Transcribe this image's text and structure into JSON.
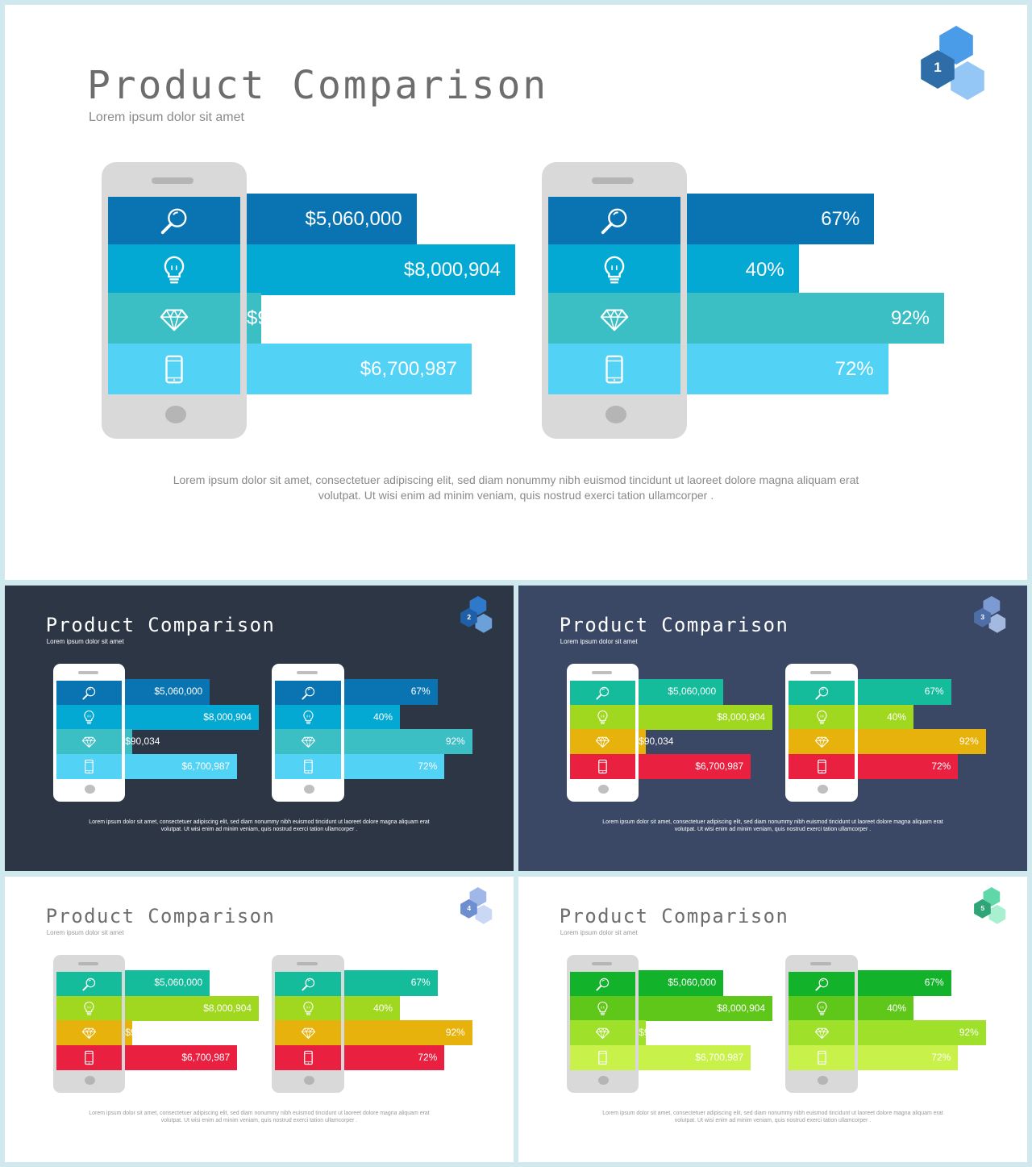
{
  "slides": [
    {
      "number": "1",
      "title": "Product Comparison",
      "subtitle": "Lorem ipsum dolor sit amet",
      "body_line1": "Lorem ipsum dolor sit amet, consectetuer adipiscing elit, sed diam nonummy  nibh euismod tincidunt ut laoreet dolore magna aliquam erat",
      "body_line2": "volutpat. Ut wisi enim ad minim veniam, quis nostrud exerci tation ullamcorper .",
      "theme": {
        "bg": "#ffffff",
        "title": "#6d6d6d",
        "subtitle": "#8a8a8a",
        "body": "#8a8a8a",
        "phone": "#d9d9d9",
        "phone_detail": "#b5b5b5",
        "bar_colors": [
          "#0a74b3",
          "#03a9d3",
          "#3bbfc4",
          "#52d2f5"
        ],
        "badge": [
          "#2e6da8",
          "#4a9be8",
          "#8ec4f5"
        ]
      }
    },
    {
      "number": "2",
      "title": "Product Comparison",
      "subtitle": "Lorem ipsum dolor sit amet",
      "body_line1": "Lorem ipsum dolor sit amet, consectetuer adipiscing elit, sed diam nonummy  nibh euismod tincidunt ut laoreet dolore magna aliquam erat",
      "body_line2": "volutpat. Ut wisi enim ad minim veniam, quis nostrud exerci tation ullamcorper .",
      "theme": {
        "bg": "#2d3644",
        "title": "#ffffff",
        "subtitle": "#ffffff",
        "body": "#ffffff",
        "phone": "#ffffff",
        "phone_detail": "#bfbfbf",
        "bar_colors": [
          "#0a74b3",
          "#03a9d3",
          "#3bbfc4",
          "#52d2f5"
        ],
        "badge": [
          "#1f5fa6",
          "#2e79c9",
          "#6fa6e0"
        ]
      }
    },
    {
      "number": "3",
      "title": "Product Comparison",
      "subtitle": "Lorem ipsum dolor sit amet",
      "body_line1": "Lorem ipsum dolor sit amet, consectetuer adipiscing elit, sed diam nonummy  nibh euismod tincidunt ut laoreet dolore magna aliquam erat",
      "body_line2": "volutpat. Ut wisi enim ad minim veniam, quis nostrud exerci tation ullamcorper .",
      "theme": {
        "bg": "#3b4865",
        "title": "#ffffff",
        "subtitle": "#ffffff",
        "body": "#ffffff",
        "phone": "#ffffff",
        "phone_detail": "#bfbfbf",
        "bar_colors": [
          "#14bc9b",
          "#a0d81f",
          "#e8b20d",
          "#ea2040"
        ],
        "badge": [
          "#4e6ea8",
          "#7c9bd3",
          "#aac0e6"
        ]
      }
    },
    {
      "number": "4",
      "title": "Product Comparison",
      "subtitle": "Lorem ipsum dolor sit amet",
      "body_line1": "Lorem ipsum dolor sit amet, consectetuer adipiscing elit, sed diam nonummy  nibh euismod tincidunt ut laoreet dolore magna aliquam erat",
      "body_line2": "volutpat. Ut wisi enim ad minim veniam, quis nostrud exerci tation ullamcorper .",
      "theme": {
        "bg": "#ffffff",
        "title": "#6d6d6d",
        "subtitle": "#9a9a9a",
        "body": "#9a9a9a",
        "phone": "#d9d9d9",
        "phone_detail": "#b5b5b5",
        "bar_colors": [
          "#14bc9b",
          "#a0d81f",
          "#e8b20d",
          "#ea2040"
        ],
        "badge": [
          "#6d8fd0",
          "#9fb8e8",
          "#c7d6f3"
        ]
      }
    },
    {
      "number": "5",
      "title": "Product Comparison",
      "subtitle": "Lorem ipsum dolor sit amet",
      "body_line1": "Lorem ipsum dolor sit amet, consectetuer adipiscing elit, sed diam nonummy  nibh euismod tincidunt ut laoreet dolore magna aliquam erat",
      "body_line2": "volutpat. Ut wisi enim ad minim veniam, quis nostrud exerci tation ullamcorper .",
      "theme": {
        "bg": "#ffffff",
        "title": "#6d6d6d",
        "subtitle": "#9a9a9a",
        "body": "#9a9a9a",
        "phone": "#d9d9d9",
        "phone_detail": "#b5b5b5",
        "bar_colors": [
          "#12b22a",
          "#5fc71a",
          "#9fe02a",
          "#c8f24a"
        ],
        "badge": [
          "#2fa477",
          "#5fd7a8",
          "#a4efcf"
        ]
      }
    }
  ],
  "icons": [
    "search-icon",
    "lightbulb-icon",
    "diamond-icon",
    "mobile-icon"
  ],
  "chart_data": [
    {
      "type": "bar",
      "categories": [
        "search",
        "idea",
        "diamond",
        "mobile"
      ],
      "values": [
        5060000,
        8000904,
        90034,
        6700987
      ],
      "labels": [
        "$5,060,000",
        "$8,000,904",
        "$90,034",
        "$6,700,987"
      ]
    },
    {
      "type": "bar",
      "categories": [
        "search",
        "idea",
        "diamond",
        "mobile"
      ],
      "values": [
        67,
        40,
        92,
        72
      ],
      "labels": [
        "67%",
        "40%",
        "92%",
        "72%"
      ]
    }
  ]
}
